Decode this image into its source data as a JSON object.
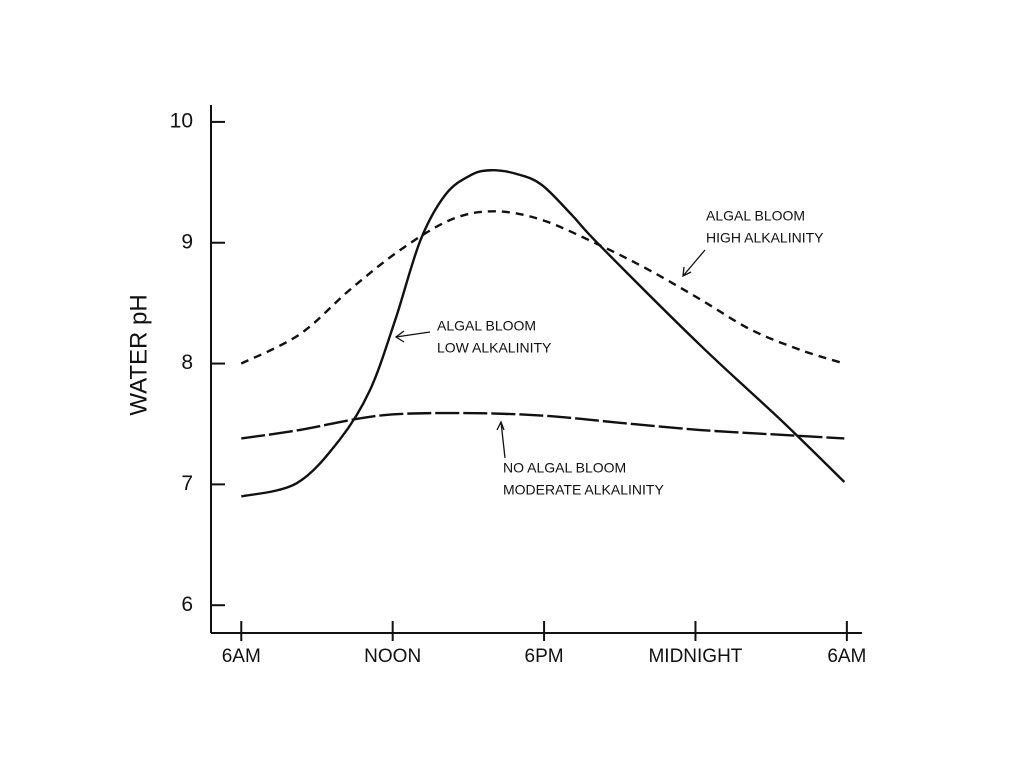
{
  "chart_data": {
    "type": "line",
    "y_label": "WATER pH",
    "xlim": [
      4.8,
      30.6
    ],
    "ylim": [
      5.77,
      10.14
    ],
    "xticks": [
      {
        "value": 6,
        "label": "6AM"
      },
      {
        "value": 12,
        "label": "NOON"
      },
      {
        "value": 18,
        "label": "6PM"
      },
      {
        "value": 24,
        "label": "MIDNIGHT"
      },
      {
        "value": 30,
        "label": "6AM"
      }
    ],
    "yticks": [
      6,
      7,
      8,
      9,
      10
    ],
    "series": [
      {
        "label_lines": [
          "ALGAL BLOOM",
          "LOW ALKALINITY"
        ],
        "color": "#111111",
        "dash": "none",
        "x": [
          6,
          8.2,
          9.9,
          11.1,
          12.1,
          13.1,
          14.1,
          15.1,
          15.9,
          16.9,
          17.9,
          19.1,
          20.2,
          24.2,
          27.4,
          29.9
        ],
        "values": [
          6.9,
          7.01,
          7.37,
          7.78,
          8.36,
          9.02,
          9.4,
          9.56,
          9.6,
          9.57,
          9.48,
          9.23,
          8.98,
          8.15,
          7.53,
          7.02
        ]
      },
      {
        "label_lines": [
          "ALGAL BLOOM",
          "HIGH ALKALINITY"
        ],
        "color": "#111111",
        "dash": "8,6",
        "x": [
          6,
          8.3,
          10.3,
          12.3,
          14.3,
          16.0,
          17.9,
          20.2,
          22.2,
          24.2,
          26.2,
          28.2,
          29.9
        ],
        "values": [
          8.0,
          8.24,
          8.61,
          8.94,
          9.19,
          9.26,
          9.19,
          8.98,
          8.77,
          8.53,
          8.28,
          8.11,
          8.0
        ]
      },
      {
        "label_lines": [
          "NO ALGAL BLOOM",
          "MODERATE ALKALINITY"
        ],
        "color": "#111111",
        "dash": "24,4",
        "x": [
          6,
          8.3,
          11.5,
          14.7,
          17.9,
          21.0,
          24.2,
          27.4,
          29.9
        ],
        "values": [
          7.38,
          7.45,
          7.57,
          7.59,
          7.57,
          7.51,
          7.45,
          7.41,
          7.38
        ]
      }
    ]
  }
}
